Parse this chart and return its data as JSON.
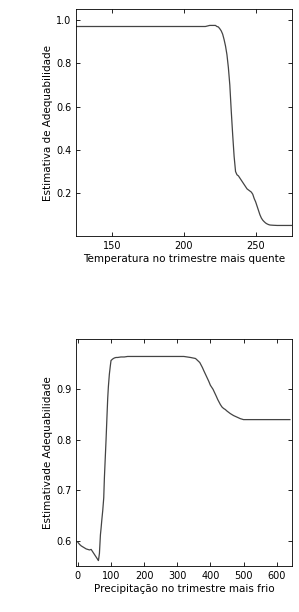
{
  "plot1": {
    "xlabel": "Temperatura no trimestre mais quente",
    "ylabel": "Estimativa de Adequabilidade",
    "xlim": [
      125,
      275
    ],
    "ylim": [
      0.0,
      1.05
    ],
    "xticks": [
      150,
      200,
      250
    ],
    "yticks": [
      0.2,
      0.4,
      0.6,
      0.8,
      1.0
    ],
    "x": [
      125,
      127,
      130,
      135,
      140,
      145,
      150,
      155,
      160,
      165,
      170,
      175,
      180,
      185,
      190,
      195,
      200,
      205,
      210,
      213,
      215,
      218,
      219,
      220,
      221,
      222,
      223,
      224,
      225,
      226,
      227,
      228,
      229,
      230,
      231,
      232,
      233,
      234,
      235,
      236,
      237,
      238,
      239,
      240,
      241,
      242,
      243,
      244,
      245,
      246,
      247,
      248,
      249,
      250,
      251,
      252,
      253,
      254,
      255,
      256,
      257,
      258,
      259,
      260,
      262,
      265,
      270,
      275
    ],
    "y": [
      0.97,
      0.97,
      0.97,
      0.97,
      0.97,
      0.97,
      0.97,
      0.97,
      0.97,
      0.97,
      0.97,
      0.97,
      0.97,
      0.97,
      0.97,
      0.97,
      0.97,
      0.97,
      0.97,
      0.97,
      0.97,
      0.975,
      0.975,
      0.975,
      0.975,
      0.975,
      0.97,
      0.968,
      0.96,
      0.95,
      0.935,
      0.91,
      0.88,
      0.84,
      0.78,
      0.7,
      0.58,
      0.47,
      0.37,
      0.3,
      0.285,
      0.28,
      0.27,
      0.26,
      0.25,
      0.24,
      0.23,
      0.22,
      0.215,
      0.21,
      0.205,
      0.195,
      0.175,
      0.16,
      0.14,
      0.12,
      0.1,
      0.085,
      0.075,
      0.068,
      0.062,
      0.058,
      0.055,
      0.053,
      0.052,
      0.051,
      0.051,
      0.051
    ],
    "line_color": "#444444",
    "line_width": 0.9
  },
  "plot2": {
    "xlabel": "Precipitação no trimestre mais frio",
    "ylabel": "Estimativade Adequabilidade",
    "xlim": [
      -5,
      645
    ],
    "ylim": [
      0.55,
      1.0
    ],
    "xticks": [
      0,
      100,
      200,
      300,
      400,
      500,
      600
    ],
    "yticks": [
      0.6,
      0.7,
      0.8,
      0.9
    ],
    "x": [
      0,
      5,
      10,
      15,
      20,
      25,
      30,
      35,
      40,
      45,
      50,
      55,
      58,
      60,
      62,
      65,
      68,
      70,
      72,
      75,
      78,
      80,
      85,
      88,
      90,
      92,
      95,
      98,
      100,
      105,
      110,
      115,
      120,
      130,
      140,
      150,
      160,
      170,
      180,
      190,
      200,
      220,
      240,
      260,
      280,
      300,
      320,
      340,
      355,
      360,
      368,
      372,
      376,
      380,
      385,
      390,
      395,
      400,
      408,
      413,
      418,
      422,
      426,
      430,
      435,
      440,
      445,
      450,
      460,
      470,
      480,
      490,
      500,
      520,
      540,
      560,
      580,
      600,
      620,
      640
    ],
    "y": [
      0.597,
      0.593,
      0.59,
      0.588,
      0.586,
      0.584,
      0.583,
      0.582,
      0.583,
      0.578,
      0.573,
      0.568,
      0.565,
      0.563,
      0.561,
      0.575,
      0.612,
      0.625,
      0.64,
      0.66,
      0.685,
      0.725,
      0.8,
      0.85,
      0.882,
      0.905,
      0.93,
      0.947,
      0.957,
      0.96,
      0.962,
      0.963,
      0.963,
      0.964,
      0.964,
      0.965,
      0.965,
      0.965,
      0.965,
      0.965,
      0.965,
      0.965,
      0.965,
      0.965,
      0.965,
      0.965,
      0.965,
      0.963,
      0.961,
      0.958,
      0.953,
      0.948,
      0.943,
      0.937,
      0.93,
      0.923,
      0.916,
      0.908,
      0.9,
      0.893,
      0.886,
      0.88,
      0.875,
      0.87,
      0.865,
      0.862,
      0.86,
      0.857,
      0.852,
      0.848,
      0.845,
      0.842,
      0.84,
      0.84,
      0.84,
      0.84,
      0.84,
      0.84,
      0.84,
      0.84
    ],
    "line_color": "#444444",
    "line_width": 0.9
  },
  "background_color": "#ffffff",
  "tick_fontsize": 7,
  "label_fontsize": 7.5
}
